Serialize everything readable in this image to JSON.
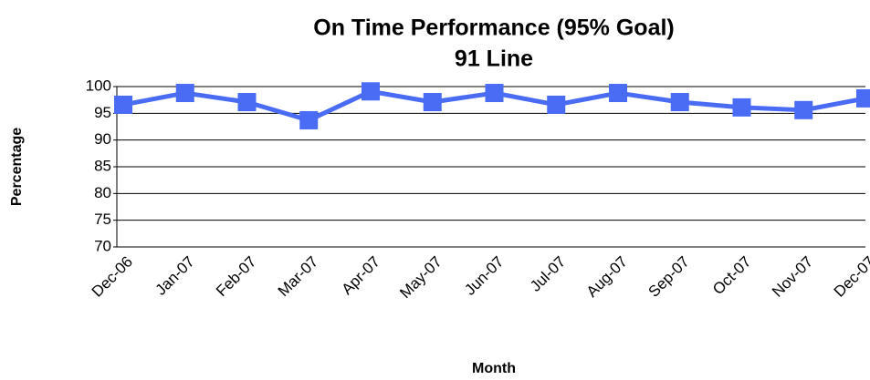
{
  "chart_data": {
    "type": "line",
    "title": "On Time Performance (95% Goal)",
    "subtitle": "91 Line",
    "x_label": "Month",
    "y_label": "Percentage",
    "categories": [
      "Dec-06",
      "Jan-07",
      "Feb-07",
      "Mar-07",
      "Apr-07",
      "May-07",
      "Jun-07",
      "Jul-07",
      "Aug-07",
      "Sep-07",
      "Oct-07",
      "Nov-07",
      "Dec-07"
    ],
    "series": [
      {
        "name": "On Time Performance",
        "color": "#4a6cf4",
        "values": [
          96.6,
          98.8,
          97.1,
          93.7,
          99.1,
          97.1,
          98.8,
          96.6,
          98.8,
          97.1,
          96.1,
          95.6,
          97.8
        ]
      }
    ],
    "ylim": [
      70,
      100
    ],
    "yticks": [
      70,
      75,
      80,
      85,
      90,
      95,
      100
    ],
    "grid": true
  }
}
